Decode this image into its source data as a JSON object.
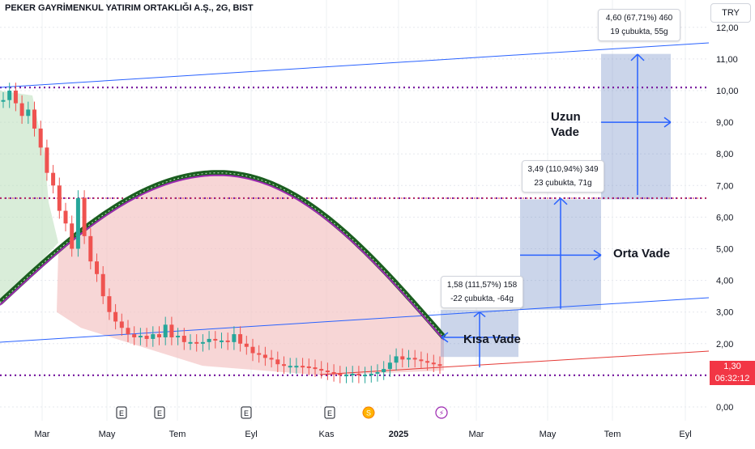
{
  "header": {
    "title": "PEKER GAYRİMENKUL YATIRIM ORTAKLIĞI A.Ş., 2G, BIST",
    "currency": "TRY"
  },
  "price_badge": {
    "price": "1,30",
    "countdown": "06:32:12"
  },
  "projections": [
    {
      "label": "Kısa Vade",
      "line1": "1,58 (111,57%) 158",
      "line2": "-22 çubukta, -64g"
    },
    {
      "label": "Orta Vade",
      "line1": "3,49 (110,94%) 349",
      "line2": "23 çubukta, 71g"
    },
    {
      "label_line1": "Uzun",
      "label_line2": "Vade",
      "line1": "4,60 (67,71%) 460",
      "line2": "19 çubukta, 55g"
    }
  ],
  "events": [
    "E",
    "E",
    "E",
    "E",
    "S",
    "⚡"
  ],
  "colors": {
    "up": "#26a69a",
    "down": "#ef5350",
    "projection": "#6b86c2",
    "trendline": "#2962ff",
    "level": "#7b1fa2",
    "arc_fill": "#f4c4c4"
  },
  "chart_data": {
    "type": "candlestick",
    "title": "PEKER GAYRİMENKUL YATIRIM ORTAKLIĞI A.Ş., 2G, BIST",
    "y_tick_labels": [
      "0,00",
      "1,00",
      "2,00",
      "3,00",
      "4,00",
      "5,00",
      "6,00",
      "7,00",
      "8,00",
      "9,00",
      "10,00",
      "11,00",
      "12,00"
    ],
    "ylim": [
      0,
      12.4
    ],
    "x_tick_labels": [
      "Mar",
      "May",
      "Tem",
      "Eyl",
      "Kas",
      "2025",
      "Mar",
      "May",
      "Tem",
      "Eyl"
    ],
    "series": [
      {
        "type": "candles",
        "close_path": [
          [
            0,
            9.7
          ],
          [
            1,
            10.0
          ],
          [
            2,
            9.6
          ],
          [
            3,
            9.2
          ],
          [
            4,
            9.4
          ],
          [
            5,
            8.8
          ],
          [
            6,
            8.2
          ],
          [
            7,
            7.4
          ],
          [
            8,
            7.0
          ],
          [
            9,
            6.2
          ],
          [
            10,
            5.8
          ],
          [
            11,
            5.0
          ],
          [
            12,
            6.6
          ],
          [
            13,
            5.4
          ],
          [
            14,
            4.6
          ],
          [
            15,
            4.2
          ],
          [
            16,
            3.5
          ],
          [
            17,
            3.0
          ],
          [
            18,
            2.7
          ],
          [
            19,
            2.5
          ],
          [
            20,
            2.3
          ],
          [
            21,
            2.2
          ],
          [
            22,
            2.25
          ],
          [
            23,
            2.15
          ],
          [
            24,
            2.3
          ],
          [
            25,
            2.2
          ],
          [
            26,
            2.6
          ],
          [
            27,
            2.2
          ],
          [
            28,
            2.25
          ],
          [
            29,
            2.05
          ],
          [
            30,
            2.05
          ],
          [
            31,
            2.0
          ],
          [
            32,
            2.05
          ],
          [
            33,
            2.15
          ],
          [
            34,
            2.1
          ],
          [
            35,
            2.1
          ],
          [
            36,
            2.05
          ],
          [
            37,
            2.3
          ],
          [
            38,
            2.0
          ],
          [
            39,
            1.9
          ],
          [
            40,
            1.7
          ],
          [
            41,
            1.65
          ],
          [
            42,
            1.55
          ],
          [
            43,
            1.5
          ],
          [
            44,
            1.35
          ],
          [
            45,
            1.3
          ],
          [
            46,
            1.3
          ],
          [
            47,
            1.3
          ],
          [
            48,
            1.28
          ],
          [
            49,
            1.25
          ],
          [
            50,
            1.2
          ],
          [
            51,
            1.15
          ],
          [
            52,
            1.1
          ],
          [
            53,
            1.05
          ],
          [
            54,
            1.0
          ],
          [
            55,
            1.02
          ],
          [
            56,
            1.05
          ],
          [
            57,
            1.0
          ],
          [
            58,
            1.02
          ],
          [
            59,
            1.05
          ],
          [
            60,
            1.1
          ],
          [
            61,
            1.2
          ],
          [
            62,
            1.4
          ],
          [
            63,
            1.6
          ],
          [
            64,
            1.5
          ],
          [
            65,
            1.55
          ],
          [
            66,
            1.5
          ],
          [
            67,
            1.45
          ],
          [
            68,
            1.4
          ],
          [
            69,
            1.35
          ],
          [
            70,
            1.3
          ]
        ]
      },
      {
        "type": "ma-arc",
        "peak_value": 7.4
      },
      {
        "type": "projection-zones",
        "zones": [
          {
            "from": 1.58,
            "to": 3.07
          },
          {
            "from": 3.07,
            "to": 6.56
          },
          {
            "from": 6.56,
            "to": 11.16
          }
        ]
      }
    ],
    "levels": [
      10.1,
      6.6,
      1.0
    ],
    "grid": true
  }
}
